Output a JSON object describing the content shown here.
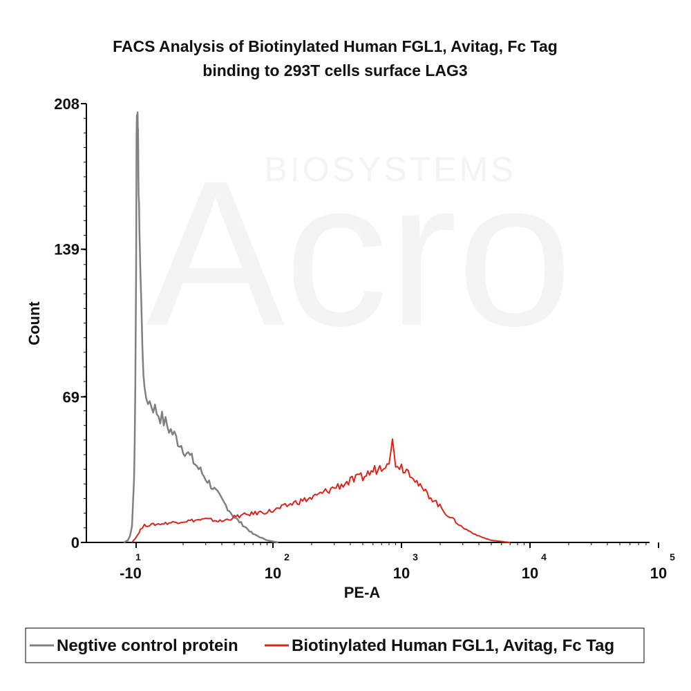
{
  "chart_data": {
    "type": "line",
    "title": "FACS Analysis of Biotinylated Human FGL1, Avitag, Fc Tag",
    "subtitle": "binding to 293T cells surface LAG3",
    "xlabel": "PE-A",
    "ylabel": "Count",
    "x_scale": "biexponential",
    "ylim": [
      0,
      208
    ],
    "y_ticks": [
      {
        "value": 0,
        "label": "0"
      },
      {
        "value": 69,
        "label": "69"
      },
      {
        "value": 139,
        "label": "139"
      },
      {
        "value": 208,
        "label": "208"
      }
    ],
    "x_ticks": [
      {
        "value": -10,
        "label": "-10",
        "exp": "1"
      },
      {
        "value": 100,
        "label": "10",
        "exp": "2"
      },
      {
        "value": 1000,
        "label": "10",
        "exp": "3"
      },
      {
        "value": 10000,
        "label": "10",
        "exp": "4"
      },
      {
        "value": 100000,
        "label": "10",
        "exp": "5"
      }
    ],
    "grid": false,
    "legend_position": "bottom",
    "series": [
      {
        "name": "Negtive control protein",
        "color": "#808080",
        "points": [
          [
            -40,
            0
          ],
          [
            -30,
            1
          ],
          [
            -25,
            3
          ],
          [
            -20,
            8
          ],
          [
            -15,
            30
          ],
          [
            -12,
            70
          ],
          [
            -10,
            130
          ],
          [
            -9,
            190
          ],
          [
            -8,
            206
          ],
          [
            -7.5,
            198
          ],
          [
            -7,
            190
          ],
          [
            -6.5,
            204
          ],
          [
            -6,
            200
          ],
          [
            -5,
            185
          ],
          [
            -4,
            165
          ],
          [
            -2,
            150
          ],
          [
            0,
            130
          ],
          [
            5,
            95
          ],
          [
            10,
            70
          ],
          [
            20,
            45
          ],
          [
            35,
            25
          ],
          [
            50,
            12
          ],
          [
            70,
            4
          ],
          [
            90,
            1
          ],
          [
            110,
            0
          ]
        ]
      },
      {
        "name": "Biotinylated Human FGL1, Avitag, Fc Tag",
        "color": "#e32119",
        "points": [
          [
            -20,
            0
          ],
          [
            -12,
            2
          ],
          [
            -5,
            4
          ],
          [
            0,
            6
          ],
          [
            10,
            8
          ],
          [
            20,
            10
          ],
          [
            30,
            11
          ],
          [
            40,
            10
          ],
          [
            50,
            12
          ],
          [
            60,
            13
          ],
          [
            75,
            14
          ],
          [
            100,
            15
          ],
          [
            150,
            19
          ],
          [
            200,
            21
          ],
          [
            300,
            26
          ],
          [
            400,
            29
          ],
          [
            500,
            31
          ],
          [
            600,
            34
          ],
          [
            700,
            36
          ],
          [
            800,
            40
          ],
          [
            850,
            47
          ],
          [
            900,
            38
          ],
          [
            1000,
            36
          ],
          [
            1200,
            33
          ],
          [
            1400,
            26
          ],
          [
            1800,
            20
          ],
          [
            2200,
            14
          ],
          [
            3000,
            7
          ],
          [
            4000,
            3
          ],
          [
            5000,
            1
          ],
          [
            7000,
            0
          ]
        ]
      }
    ]
  },
  "watermark": {
    "brand": "Acro",
    "sub": "BIOSYSTEMS"
  }
}
